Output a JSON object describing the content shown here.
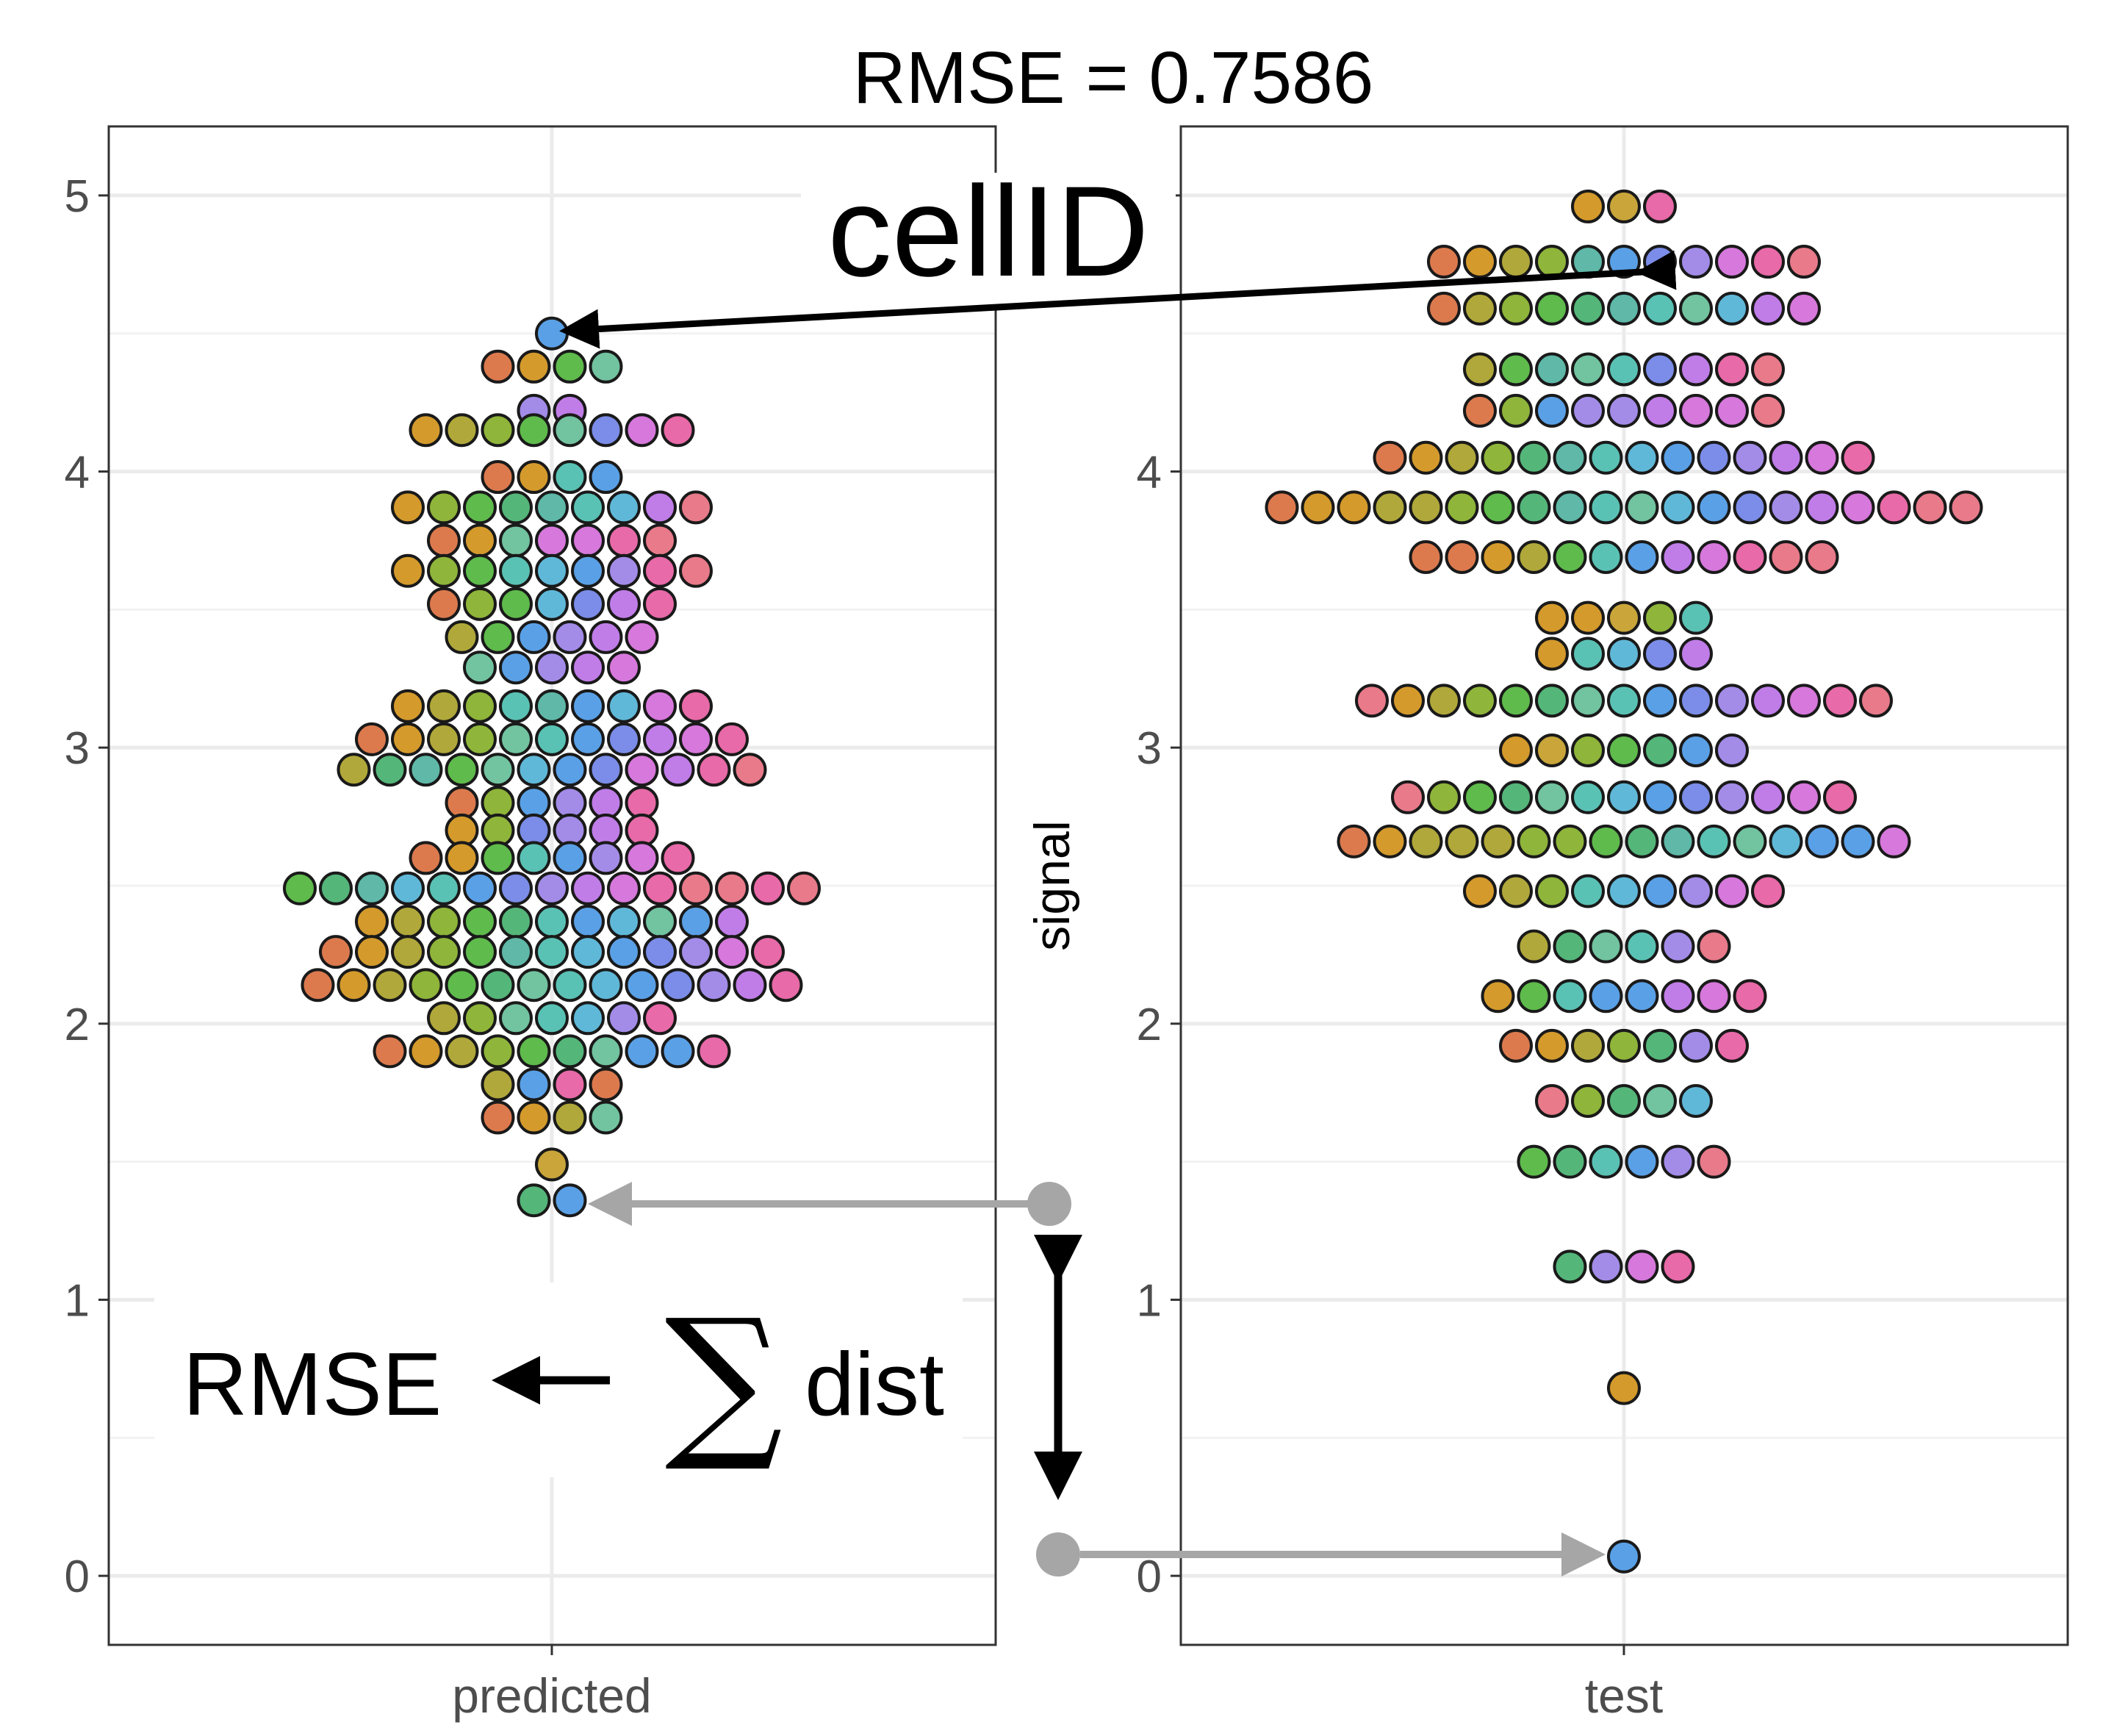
{
  "chart_data": {
    "type": "scatter",
    "subtype": "beeswarm",
    "title": "RMSE = 0.7586",
    "ylabel": "signal",
    "ylim": [
      -0.25,
      5.25
    ],
    "yticks": [
      "0",
      "1",
      "2",
      "3",
      "4",
      "5"
    ],
    "grid": true,
    "legend": "none",
    "panels": [
      {
        "name": "predicted",
        "rows": [
          {
            "y": 4.5,
            "colors": [
              "#5aa0e6"
            ]
          },
          {
            "y": 4.38,
            "colors": [
              "#dc7a4e",
              "#d49a2c",
              "#5fbb4c",
              "#72c3a0"
            ]
          },
          {
            "y": 4.22,
            "colors": [
              "#a38ce8",
              "#c07de8"
            ]
          },
          {
            "y": 4.15,
            "colors": [
              "#d49a2c",
              "#b0a83a",
              "#8fb53a",
              "#5fbb4c",
              "#72c3a0",
              "#7b8de8",
              "#d678dc",
              "#e86aa8"
            ]
          },
          {
            "y": 3.98,
            "colors": [
              "#dc7a4e",
              "#d49a2c",
              "#5ac2b4",
              "#5aa0e6"
            ]
          },
          {
            "y": 3.87,
            "colors": [
              "#d49a2c",
              "#8fb53a",
              "#5fbb4c",
              "#55b67a",
              "#5fb8a8",
              "#5ac2b4",
              "#60b8d8",
              "#c07de8",
              "#e87a8a"
            ]
          },
          {
            "y": 3.75,
            "colors": [
              "#dc7a4e",
              "#d49a2c",
              "#72c3a0",
              "#d678dc",
              "#d678dc",
              "#e86aa8",
              "#e87a8a"
            ]
          },
          {
            "y": 3.64,
            "colors": [
              "#d49a2c",
              "#8fb53a",
              "#5fbb4c",
              "#5ac2b4",
              "#60b8d8",
              "#5aa0e6",
              "#a38ce8",
              "#e86aa8",
              "#e87a8a"
            ]
          },
          {
            "y": 3.52,
            "colors": [
              "#dc7a4e",
              "#8fb53a",
              "#5fbb4c",
              "#60b8d8",
              "#7b8de8",
              "#c07de8",
              "#e86aa8"
            ]
          },
          {
            "y": 3.4,
            "colors": [
              "#b0a83a",
              "#5fbb4c",
              "#5aa0e6",
              "#a38ce8",
              "#c07de8",
              "#d678dc"
            ]
          },
          {
            "y": 3.29,
            "colors": [
              "#72c3a0",
              "#5aa0e6",
              "#a38ce8",
              "#c07de8",
              "#d678dc"
            ]
          },
          {
            "y": 3.15,
            "colors": [
              "#d49a2c",
              "#b0a83a",
              "#8fb53a",
              "#5ac2b4",
              "#5fb8a8",
              "#5aa0e6",
              "#60b8d8",
              "#d678dc",
              "#e86aa8"
            ]
          },
          {
            "y": 3.03,
            "colors": [
              "#dc7a4e",
              "#d49a2c",
              "#b0a83a",
              "#8fb53a",
              "#72c3a0",
              "#5ac2b4",
              "#5aa0e6",
              "#7b8de8",
              "#c07de8",
              "#d678dc",
              "#e86aa8"
            ]
          },
          {
            "y": 2.92,
            "colors": [
              "#b0a83a",
              "#55b67a",
              "#5fb8a8",
              "#5fbb4c",
              "#72c3a0",
              "#60b8d8",
              "#5aa0e6",
              "#7b8de8",
              "#d678dc",
              "#c07de8",
              "#e86aa8",
              "#e87a8a"
            ]
          },
          {
            "y": 2.8,
            "colors": [
              "#dc7a4e",
              "#8fb53a",
              "#5aa0e6",
              "#a38ce8",
              "#c07de8",
              "#e86aa8"
            ]
          },
          {
            "y": 2.7,
            "colors": [
              "#d49a2c",
              "#8fb53a",
              "#7b8de8",
              "#a38ce8",
              "#c07de8",
              "#e86aa8"
            ]
          },
          {
            "y": 2.6,
            "colors": [
              "#dc7a4e",
              "#d49a2c",
              "#5fbb4c",
              "#5ac2b4",
              "#5aa0e6",
              "#a38ce8",
              "#d678dc",
              "#e86aa8"
            ]
          },
          {
            "y": 2.49,
            "colors": [
              "#5fbb4c",
              "#55b67a",
              "#5fb8a8",
              "#60b8d8",
              "#5ac2b4",
              "#5aa0e6",
              "#7b8de8",
              "#a38ce8",
              "#c07de8",
              "#d678dc",
              "#e86aa8",
              "#e87a8a",
              "#e87a8a",
              "#e86aa8",
              "#e87a8a"
            ]
          },
          {
            "y": 2.37,
            "colors": [
              "#d49a2c",
              "#b0a83a",
              "#8fb53a",
              "#5fbb4c",
              "#55b67a",
              "#5ac2b4",
              "#5aa0e6",
              "#60b8d8",
              "#72c3a0",
              "#5aa0e6",
              "#c07de8"
            ]
          },
          {
            "y": 2.26,
            "colors": [
              "#dc7a4e",
              "#d49a2c",
              "#b0a83a",
              "#8fb53a",
              "#5fbb4c",
              "#5fb8a8",
              "#5ac2b4",
              "#60b8d8",
              "#5aa0e6",
              "#7b8de8",
              "#a38ce8",
              "#d678dc",
              "#e86aa8"
            ]
          },
          {
            "y": 2.14,
            "colors": [
              "#dc7a4e",
              "#d49a2c",
              "#b0a83a",
              "#8fb53a",
              "#5fbb4c",
              "#55b67a",
              "#72c3a0",
              "#5ac2b4",
              "#60b8d8",
              "#5aa0e6",
              "#7b8de8",
              "#a38ce8",
              "#c07de8",
              "#e86aa8"
            ]
          },
          {
            "y": 2.02,
            "colors": [
              "#b0a83a",
              "#8fb53a",
              "#72c3a0",
              "#5ac2b4",
              "#60b8d8",
              "#a38ce8",
              "#e86aa8"
            ]
          },
          {
            "y": 1.9,
            "colors": [
              "#dc7a4e",
              "#d49a2c",
              "#b0a83a",
              "#8fb53a",
              "#5fbb4c",
              "#55b67a",
              "#72c3a0",
              "#5aa0e6",
              "#5aa0e6",
              "#e86aa8"
            ]
          },
          {
            "y": 1.78,
            "colors": [
              "#b0a83a",
              "#5aa0e6",
              "#e86aa8",
              "#dc7a4e"
            ]
          },
          {
            "y": 1.66,
            "colors": [
              "#dc7a4e",
              "#d49a2c",
              "#b0a83a",
              "#72c3a0"
            ]
          },
          {
            "y": 1.49,
            "colors": [
              "#c9a53a"
            ]
          },
          {
            "y": 1.36,
            "colors": [
              "#55b67a",
              "#5aa0e6"
            ]
          }
        ]
      },
      {
        "name": "test",
        "rows": [
          {
            "y": 4.96,
            "colors": [
              "#d49a2c",
              "#c9a53a",
              "#e86aa8"
            ]
          },
          {
            "y": 4.76,
            "colors": [
              "#dc7a4e",
              "#d49a2c",
              "#b0a83a",
              "#8fb53a",
              "#5fb8a8",
              "#5aa0e6",
              "#7b8de8",
              "#a38ce8",
              "#d678dc",
              "#e86aa8",
              "#e87a8a"
            ]
          },
          {
            "y": 4.59,
            "colors": [
              "#dc7a4e",
              "#b0a83a",
              "#8fb53a",
              "#5fbb4c",
              "#55b67a",
              "#5fb8a8",
              "#5ac2b4",
              "#72c3a0",
              "#60b8d8",
              "#c07de8",
              "#d678dc"
            ]
          },
          {
            "y": 4.37,
            "colors": [
              "#b0a83a",
              "#5fbb4c",
              "#5fb8a8",
              "#72c3a0",
              "#5ac2b4",
              "#7b8de8",
              "#c07de8",
              "#e86aa8",
              "#e87a8a"
            ]
          },
          {
            "y": 4.22,
            "colors": [
              "#dc7a4e",
              "#8fb53a",
              "#5aa0e6",
              "#a38ce8",
              "#a38ce8",
              "#c07de8",
              "#d678dc",
              "#d678dc",
              "#e87a8a"
            ]
          },
          {
            "y": 4.05,
            "colors": [
              "#dc7a4e",
              "#d49a2c",
              "#b0a83a",
              "#8fb53a",
              "#55b67a",
              "#5fb8a8",
              "#5ac2b4",
              "#60b8d8",
              "#5aa0e6",
              "#7b8de8",
              "#a38ce8",
              "#c07de8",
              "#d678dc",
              "#e86aa8"
            ]
          },
          {
            "y": 3.87,
            "colors": [
              "#dc7a4e",
              "#d49a2c",
              "#d49a2c",
              "#b0a83a",
              "#b0a83a",
              "#8fb53a",
              "#5fbb4c",
              "#55b67a",
              "#5fb8a8",
              "#5ac2b4",
              "#72c3a0",
              "#60b8d8",
              "#5aa0e6",
              "#7b8de8",
              "#a38ce8",
              "#c07de8",
              "#d678dc",
              "#e86aa8",
              "#e87a8a",
              "#e87a8a"
            ]
          },
          {
            "y": 3.69,
            "colors": [
              "#dc7a4e",
              "#dc7a4e",
              "#d49a2c",
              "#b0a83a",
              "#5fbb4c",
              "#5ac2b4",
              "#5aa0e6",
              "#c07de8",
              "#d678dc",
              "#e86aa8",
              "#e87a8a",
              "#e87a8a"
            ]
          },
          {
            "y": 3.47,
            "colors": [
              "#d49a2c",
              "#d49a2c",
              "#c9a53a",
              "#8fb53a",
              "#5ac2b4"
            ]
          },
          {
            "y": 3.34,
            "colors": [
              "#d49a2c",
              "#5ac2b4",
              "#60b8d8",
              "#7b8de8",
              "#c07de8"
            ]
          },
          {
            "y": 3.17,
            "colors": [
              "#e87a8a",
              "#d49a2c",
              "#b0a83a",
              "#8fb53a",
              "#5fbb4c",
              "#55b67a",
              "#72c3a0",
              "#5ac2b4",
              "#5aa0e6",
              "#7b8de8",
              "#a38ce8",
              "#c07de8",
              "#d678dc",
              "#e86aa8",
              "#e87a8a"
            ]
          },
          {
            "y": 2.99,
            "colors": [
              "#d49a2c",
              "#c9a53a",
              "#8fb53a",
              "#5fbb4c",
              "#55b67a",
              "#5aa0e6",
              "#a38ce8"
            ]
          },
          {
            "y": 2.82,
            "colors": [
              "#e87a8a",
              "#8fb53a",
              "#5fbb4c",
              "#55b67a",
              "#72c3a0",
              "#5ac2b4",
              "#60b8d8",
              "#5aa0e6",
              "#7b8de8",
              "#a38ce8",
              "#c07de8",
              "#d678dc",
              "#e86aa8"
            ]
          },
          {
            "y": 2.66,
            "colors": [
              "#dc7a4e",
              "#d49a2c",
              "#b0a83a",
              "#b0a83a",
              "#b0a83a",
              "#8fb53a",
              "#8fb53a",
              "#5fbb4c",
              "#55b67a",
              "#5fb8a8",
              "#5ac2b4",
              "#72c3a0",
              "#60b8d8",
              "#5aa0e6",
              "#5aa0e6",
              "#d678dc"
            ]
          },
          {
            "y": 2.48,
            "colors": [
              "#d49a2c",
              "#b0a83a",
              "#8fb53a",
              "#5ac2b4",
              "#60b8d8",
              "#5aa0e6",
              "#a38ce8",
              "#d678dc",
              "#e86aa8"
            ]
          },
          {
            "y": 2.28,
            "colors": [
              "#b0a83a",
              "#55b67a",
              "#72c3a0",
              "#5ac2b4",
              "#a38ce8",
              "#e87a8a"
            ]
          },
          {
            "y": 2.1,
            "colors": [
              "#d49a2c",
              "#5fbb4c",
              "#5ac2b4",
              "#5aa0e6",
              "#5aa0e6",
              "#c07de8",
              "#d678dc",
              "#e86aa8"
            ]
          },
          {
            "y": 1.92,
            "colors": [
              "#dc7a4e",
              "#d49a2c",
              "#b0a83a",
              "#8fb53a",
              "#55b67a",
              "#a38ce8",
              "#e86aa8"
            ]
          },
          {
            "y": 1.72,
            "colors": [
              "#e87a8a",
              "#8fb53a",
              "#55b67a",
              "#72c3a0",
              "#60b8d8"
            ]
          },
          {
            "y": 1.5,
            "colors": [
              "#5fbb4c",
              "#55b67a",
              "#5ac2b4",
              "#5aa0e6",
              "#a38ce8",
              "#e87a8a"
            ]
          },
          {
            "y": 1.12,
            "colors": [
              "#55b67a",
              "#a38ce8",
              "#d678dc",
              "#e86aa8"
            ]
          },
          {
            "y": 0.68,
            "colors": [
              "#d49a2c"
            ]
          },
          {
            "y": 0.07,
            "colors": [
              "#5aa0e6"
            ]
          }
        ]
      }
    ],
    "annotations": {
      "cellid_label": "cellID",
      "rmse_label": "RMSE",
      "sum_symbol": "∑",
      "dist_label": "dist",
      "arrow_color": "#000000",
      "gray_arrow_color": "#a6a6a6"
    }
  }
}
